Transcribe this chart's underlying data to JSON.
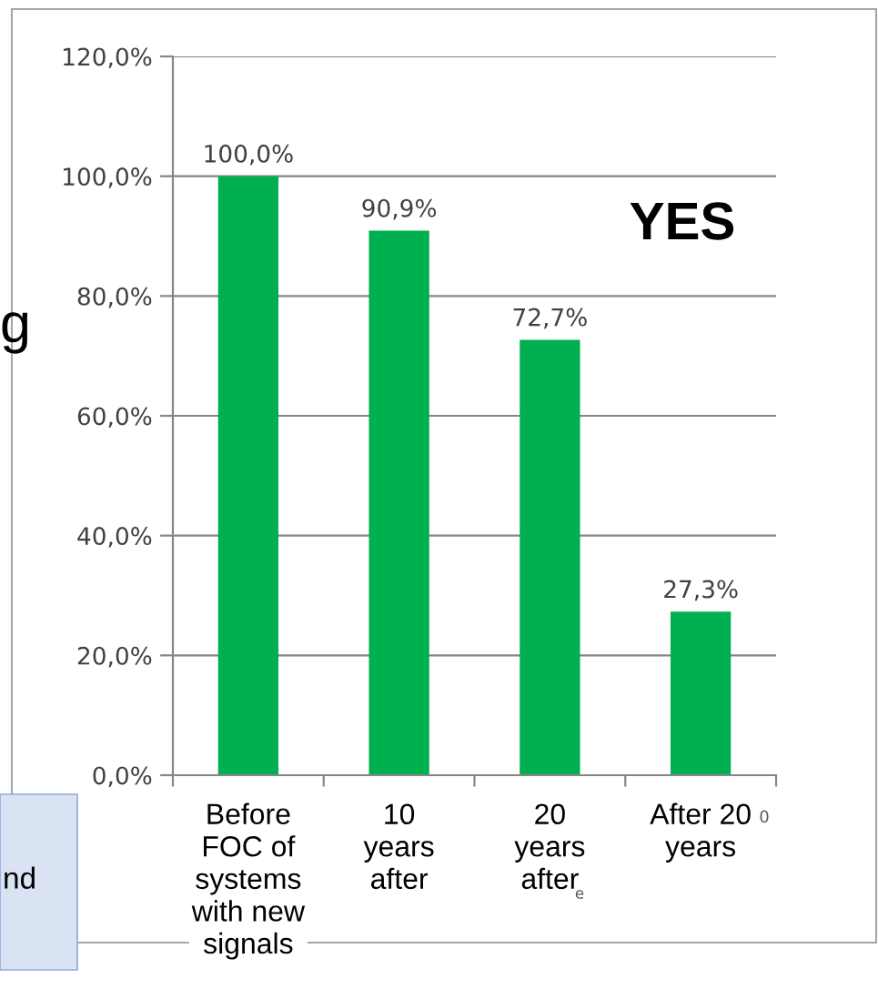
{
  "chart_data": {
    "type": "bar",
    "categories": [
      "Before\nFOC of\nsystems\nwith new\nsignals",
      "10\nyears\nafter",
      "20\nyears\nafter",
      "After 20\nyears"
    ],
    "values": [
      100.0,
      90.9,
      72.7,
      27.3
    ],
    "color": "#00b050",
    "value_labels": [
      "100,0%",
      "90,9%",
      "72,7%",
      "27,3%"
    ],
    "ylim": [
      0,
      120
    ],
    "yticks": [
      {
        "value": 0,
        "label": "0,0%"
      },
      {
        "value": 20,
        "label": "20,0%"
      },
      {
        "value": 40,
        "label": "40,0%"
      },
      {
        "value": 60,
        "label": "60,0%"
      },
      {
        "value": 80,
        "label": "80,0%"
      },
      {
        "value": 100,
        "label": "100,0%"
      },
      {
        "value": 120,
        "label": "120,0%"
      }
    ],
    "grid": "y",
    "annotations": [
      "YES",
      "g",
      "nd",
      "0",
      "e"
    ]
  }
}
